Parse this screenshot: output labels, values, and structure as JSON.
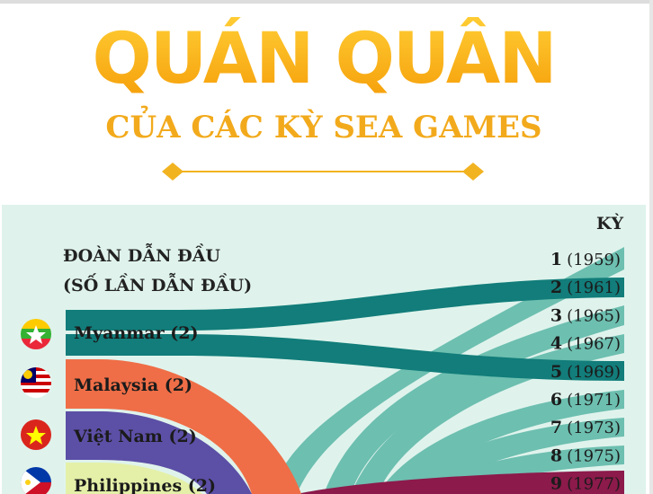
{
  "header": {
    "title": "QUÁN QUÂN",
    "subtitle": "CỦA CÁC KỲ SEA GAMES"
  },
  "left_header": {
    "line1": "ĐOÀN DẪN ĐẦU",
    "line2": "(SỐ LẦN DẪN ĐẦU)"
  },
  "right_header": "KỲ",
  "teams": [
    "Myanmar (2)",
    "Malaysia (2)",
    "Việt Nam (2)",
    "Philippines (2)"
  ],
  "games": [
    {
      "number": "1",
      "year": "(1959)"
    },
    {
      "number": "2",
      "year": "(1961)"
    },
    {
      "number": "3",
      "year": "(1965)"
    },
    {
      "number": "4",
      "year": "(1967)"
    },
    {
      "number": "5",
      "year": "(1969)"
    },
    {
      "number": "6",
      "year": "(1971)"
    },
    {
      "number": "7",
      "year": "(1973)"
    },
    {
      "number": "8",
      "year": "(1975)"
    },
    {
      "number": "9",
      "year": "(1977)"
    }
  ]
}
